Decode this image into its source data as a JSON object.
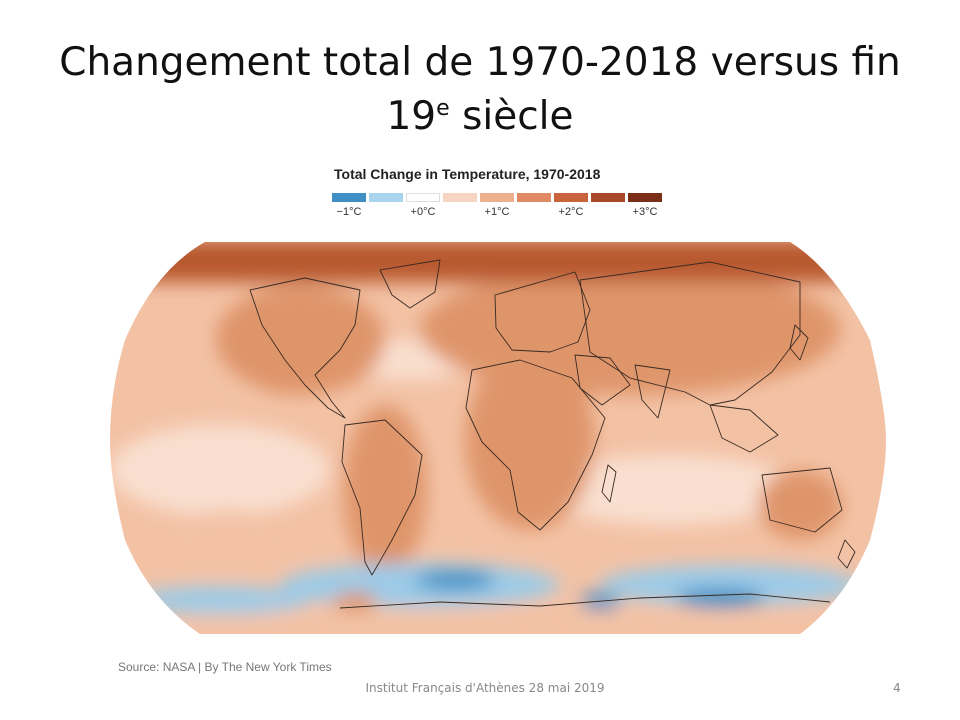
{
  "slide": {
    "title_line1": "Changement total de 1970-2018 versus fin",
    "title_line2_prefix": "19",
    "title_line2_sup": "e",
    "title_line2_suffix": " siècle"
  },
  "figure": {
    "title": "Total Change in Temperature, 1970-2018",
    "legend": {
      "colors": [
        "#3f8fc4",
        "#a9d4ee",
        "#ffffff",
        "#f8d5c2",
        "#eeb08e",
        "#df8a62",
        "#c8633e",
        "#a9482a",
        "#7c2f18"
      ],
      "labels": [
        "−1°C",
        "+0°C",
        "+1°C",
        "+2°C",
        "+3°C"
      ]
    },
    "map_colors": {
      "ocean_warm": "#f3c2a5",
      "ocean_light": "#f9dfd0",
      "land_warm": "#df956b",
      "arctic": "#b8592f",
      "cool": "#9ccbe8",
      "cold": "#3f8fc4",
      "border": "#3a2a22"
    },
    "source": "Source: NASA | By The New York Times"
  },
  "footer": {
    "text": "Institut Français d'Athènes 28 mai 2019",
    "page_number": "4"
  }
}
